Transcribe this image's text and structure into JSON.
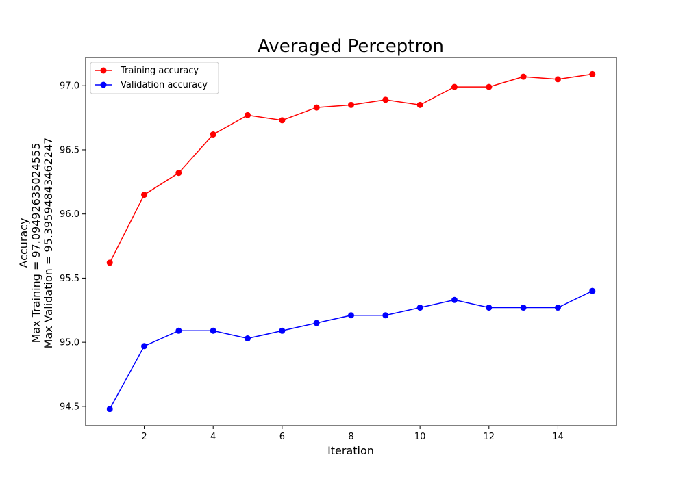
{
  "chart_data": {
    "type": "line",
    "title": "Averaged Perceptron",
    "xlabel": "Iteration",
    "ylabel_lines": [
      "Accuracy",
      "Max Training = 97.09492635024555",
      "Max Validation = 95.39594843462247"
    ],
    "x": [
      1,
      2,
      3,
      4,
      5,
      6,
      7,
      8,
      9,
      10,
      11,
      12,
      13,
      14,
      15
    ],
    "xlim": [
      0.3,
      15.7
    ],
    "ylim": [
      94.35,
      97.22
    ],
    "xticks": [
      2,
      4,
      6,
      8,
      10,
      12,
      14
    ],
    "yticks": [
      94.5,
      95.0,
      95.5,
      96.0,
      96.5,
      97.0
    ],
    "ytick_labels": [
      "94.5",
      "95.0",
      "95.5",
      "96.0",
      "96.5",
      "97.0"
    ],
    "grid": false,
    "legend_position": "top-left",
    "series": [
      {
        "name": "Training accuracy",
        "color": "#ff0000",
        "marker": "circle",
        "values": [
          95.62,
          96.15,
          96.32,
          96.62,
          96.77,
          96.73,
          96.83,
          96.85,
          96.89,
          96.85,
          96.99,
          96.99,
          97.07,
          97.05,
          97.09
        ]
      },
      {
        "name": "Validation accuracy",
        "color": "#0000ff",
        "marker": "circle",
        "values": [
          94.48,
          94.97,
          95.09,
          95.09,
          95.03,
          95.09,
          95.15,
          95.21,
          95.21,
          95.27,
          95.33,
          95.27,
          95.27,
          95.27,
          95.4
        ]
      }
    ]
  }
}
